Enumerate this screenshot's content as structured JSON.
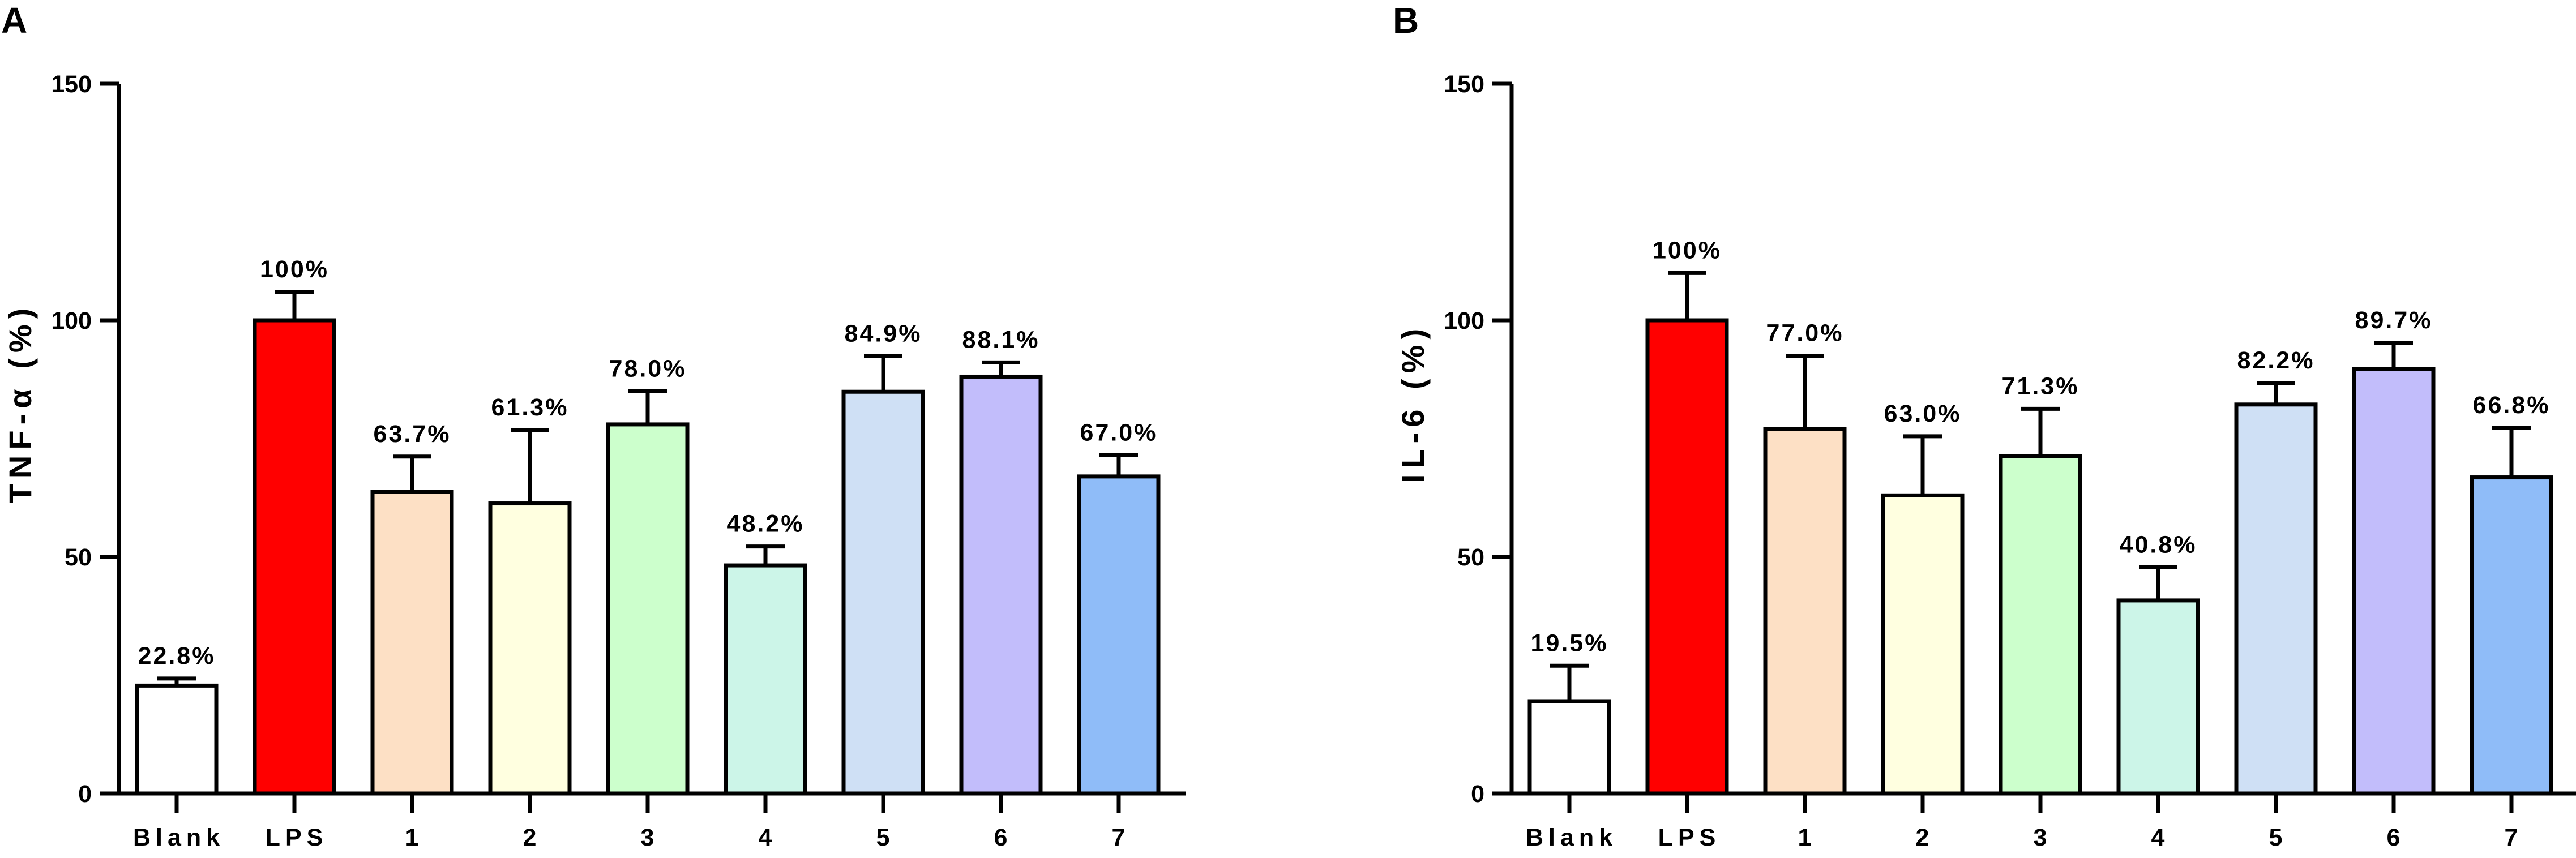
{
  "chart_data": [
    {
      "panel": "A",
      "type": "bar",
      "ylabel": "TNF-α (%)",
      "xlabel": "",
      "ylim": [
        0,
        150
      ],
      "yticks": [
        0,
        50,
        100,
        150
      ],
      "categories": [
        "Blank",
        "LPS",
        "1",
        "2",
        "3",
        "4",
        "5",
        "6",
        "7"
      ],
      "values": [
        22.8,
        100,
        63.7,
        61.3,
        78.0,
        48.2,
        84.9,
        88.1,
        67.0
      ],
      "error_bars": [
        1.5,
        6,
        7.5,
        15.5,
        7,
        4,
        7.5,
        3,
        4.5
      ],
      "data_labels": [
        "22.8%",
        "100%",
        "63.7%",
        "61.3%",
        "78.0%",
        "48.2%",
        "84.9%",
        "88.1%",
        "67.0%"
      ],
      "colors": [
        "#ffffff",
        "#ff0000",
        "#fde0c5",
        "#ffffe0",
        "#ccffcc",
        "#ccf5e8",
        "#cfe0f5",
        "#c2bdfb",
        "#8fbcf8"
      ]
    },
    {
      "panel": "B",
      "type": "bar",
      "ylabel": "IL-6 (%)",
      "xlabel": "",
      "ylim": [
        0,
        150
      ],
      "yticks": [
        0,
        50,
        100,
        150
      ],
      "categories": [
        "Blank",
        "LPS",
        "1",
        "2",
        "3",
        "4",
        "5",
        "6",
        "7"
      ],
      "values": [
        19.5,
        100,
        77.0,
        63.0,
        71.3,
        40.8,
        82.2,
        89.7,
        66.8
      ],
      "error_bars": [
        7.5,
        10,
        15.5,
        12.5,
        10,
        7,
        4.5,
        5.5,
        10.5
      ],
      "data_labels": [
        "19.5%",
        "100%",
        "77.0%",
        "63.0%",
        "71.3%",
        "40.8%",
        "82.2%",
        "89.7%",
        "66.8%"
      ],
      "colors": [
        "#ffffff",
        "#ff0000",
        "#fde0c5",
        "#ffffe0",
        "#ccffcc",
        "#ccf5e8",
        "#cfe0f5",
        "#c2bdfb",
        "#8fbcf8"
      ]
    }
  ]
}
